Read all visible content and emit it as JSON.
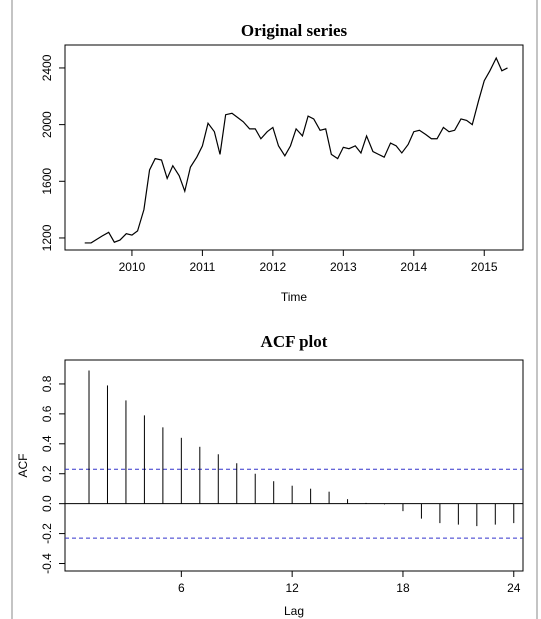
{
  "chart_data": [
    {
      "type": "line",
      "title": "Original series",
      "x_label": "Time",
      "color": "#000000",
      "x": [
        2009.33,
        2009.42,
        2009.5,
        2009.58,
        2009.67,
        2009.75,
        2009.83,
        2009.92,
        2010.0,
        2010.08,
        2010.17,
        2010.25,
        2010.33,
        2010.42,
        2010.5,
        2010.58,
        2010.67,
        2010.75,
        2010.83,
        2010.92,
        2011.0,
        2011.08,
        2011.17,
        2011.25,
        2011.33,
        2011.42,
        2011.5,
        2011.58,
        2011.67,
        2011.75,
        2011.83,
        2011.92,
        2012.0,
        2012.08,
        2012.17,
        2012.25,
        2012.33,
        2012.42,
        2012.5,
        2012.58,
        2012.67,
        2012.75,
        2012.83,
        2012.92,
        2013.0,
        2013.08,
        2013.17,
        2013.25,
        2013.33,
        2013.42,
        2013.5,
        2013.58,
        2013.67,
        2013.75,
        2013.83,
        2013.92,
        2014.0,
        2014.08,
        2014.17,
        2014.25,
        2014.33,
        2014.42,
        2014.5,
        2014.58,
        2014.67,
        2014.75,
        2014.83,
        2014.92,
        2015.0,
        2015.08,
        2015.17,
        2015.25,
        2015.33
      ],
      "values": [
        1165,
        1165,
        1190,
        1215,
        1240,
        1170,
        1185,
        1230,
        1220,
        1250,
        1400,
        1680,
        1760,
        1750,
        1620,
        1710,
        1640,
        1530,
        1700,
        1770,
        1850,
        2010,
        1950,
        1790,
        2070,
        2080,
        2050,
        2020,
        1970,
        1970,
        1900,
        1950,
        1980,
        1850,
        1780,
        1850,
        1970,
        1920,
        2060,
        2040,
        1960,
        1970,
        1790,
        1760,
        1840,
        1830,
        1850,
        1800,
        1920,
        1810,
        1790,
        1770,
        1870,
        1850,
        1800,
        1860,
        1950,
        1960,
        1930,
        1900,
        1900,
        1980,
        1950,
        1960,
        2040,
        2030,
        2000,
        2170,
        2310,
        2380,
        2470,
        2380,
        2400
      ],
      "xlim": [
        2009.05,
        2015.55
      ],
      "xticks": [
        2010,
        2011,
        2012,
        2013,
        2014,
        2015
      ],
      "ylim": [
        1115,
        2562
      ],
      "yticks": [
        1200,
        1600,
        2000,
        2400
      ]
    },
    {
      "type": "stem",
      "title": "ACF plot",
      "x_label": "Lag",
      "y_label": "ACF",
      "color": "#000000",
      "x": [
        1,
        2,
        3,
        4,
        5,
        6,
        7,
        8,
        9,
        10,
        11,
        12,
        13,
        14,
        15,
        16,
        17,
        18,
        19,
        20,
        21,
        22,
        23,
        24
      ],
      "values": [
        0.89,
        0.79,
        0.69,
        0.59,
        0.51,
        0.44,
        0.38,
        0.33,
        0.27,
        0.2,
        0.15,
        0.12,
        0.1,
        0.08,
        0.03,
        0.005,
        -0.005,
        -0.05,
        -0.1,
        -0.13,
        -0.14,
        -0.15,
        -0.14,
        -0.13
      ],
      "ci_lines": [
        0.23,
        -0.23
      ],
      "ci_color": "#3333cc",
      "xlim": [
        -0.3,
        24.5
      ],
      "xticks": [
        6,
        12,
        18,
        24
      ],
      "ylim": [
        -0.45,
        0.96
      ],
      "yticks": [
        -0.4,
        -0.2,
        {
          "value": 0,
          "label": "0.0"
        },
        0.2,
        0.4,
        0.6,
        0.8
      ]
    }
  ]
}
